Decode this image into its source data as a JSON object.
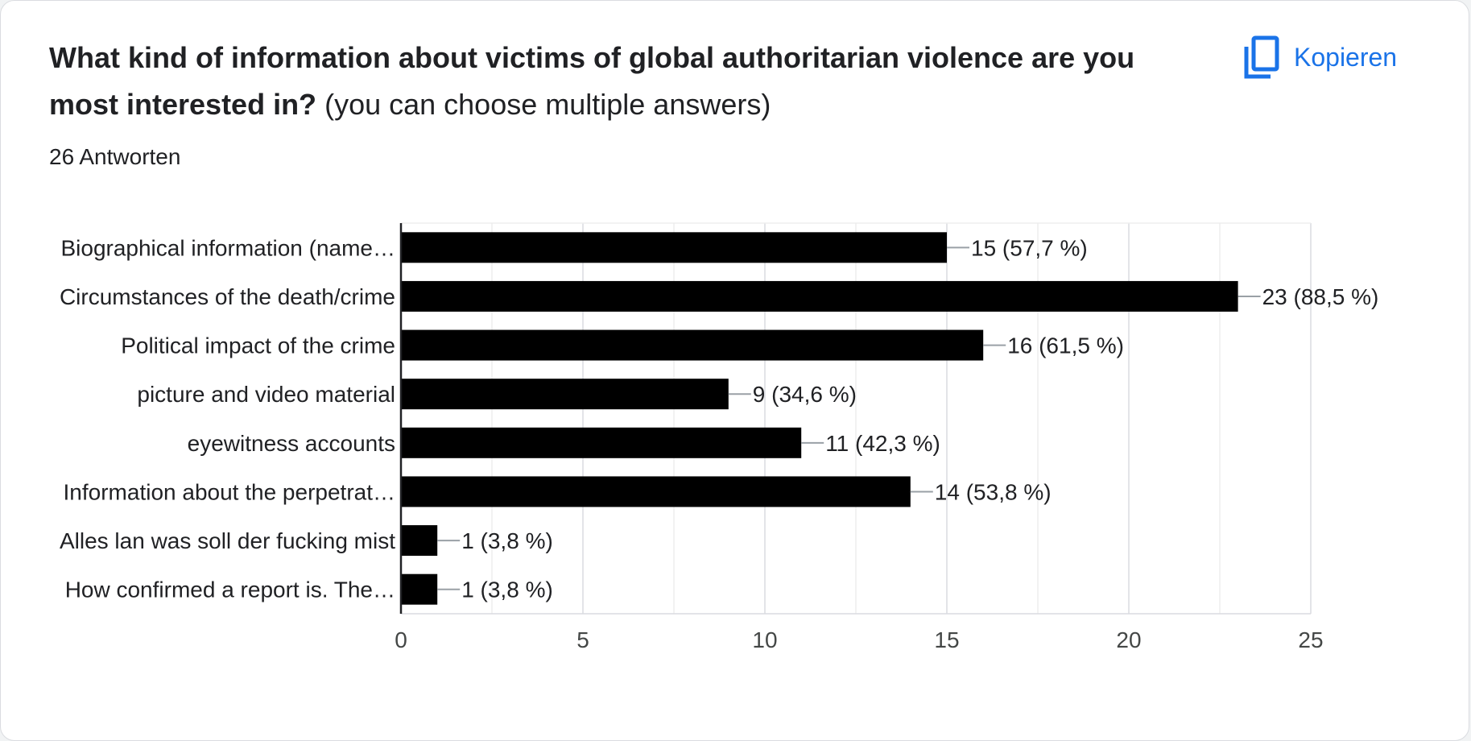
{
  "question": {
    "title": "What kind of information about victims of global authoritarian violence are you most interested in?",
    "hint": "(you can choose multiple answers)",
    "responses": "26 Antworten"
  },
  "copy": {
    "label": "Kopieren",
    "icon": "copy-icon"
  },
  "chart_data": {
    "type": "bar",
    "orientation": "horizontal",
    "categories": [
      "Biographical information (name…",
      "Circumstances of the death/crime",
      "Political impact of the crime",
      "picture and video material",
      "eyewitness accounts",
      "Information about the perpetrat…",
      "Alles lan was soll der fucking mist",
      "How confirmed a report is. The…"
    ],
    "values": [
      15,
      23,
      16,
      9,
      11,
      14,
      1,
      1
    ],
    "data_labels": [
      "15 (57,7 %)",
      "23 (88,5 %)",
      "16 (61,5 %)",
      "9 (34,6 %)",
      "11 (42,3 %)",
      "14 (53,8 %)",
      "1 (3,8 %)",
      "1 (3,8 %)"
    ],
    "xlim": [
      0,
      25
    ],
    "xticks": [
      0,
      5,
      10,
      15,
      20,
      25
    ],
    "grid": true,
    "bar_color": "#000000"
  }
}
